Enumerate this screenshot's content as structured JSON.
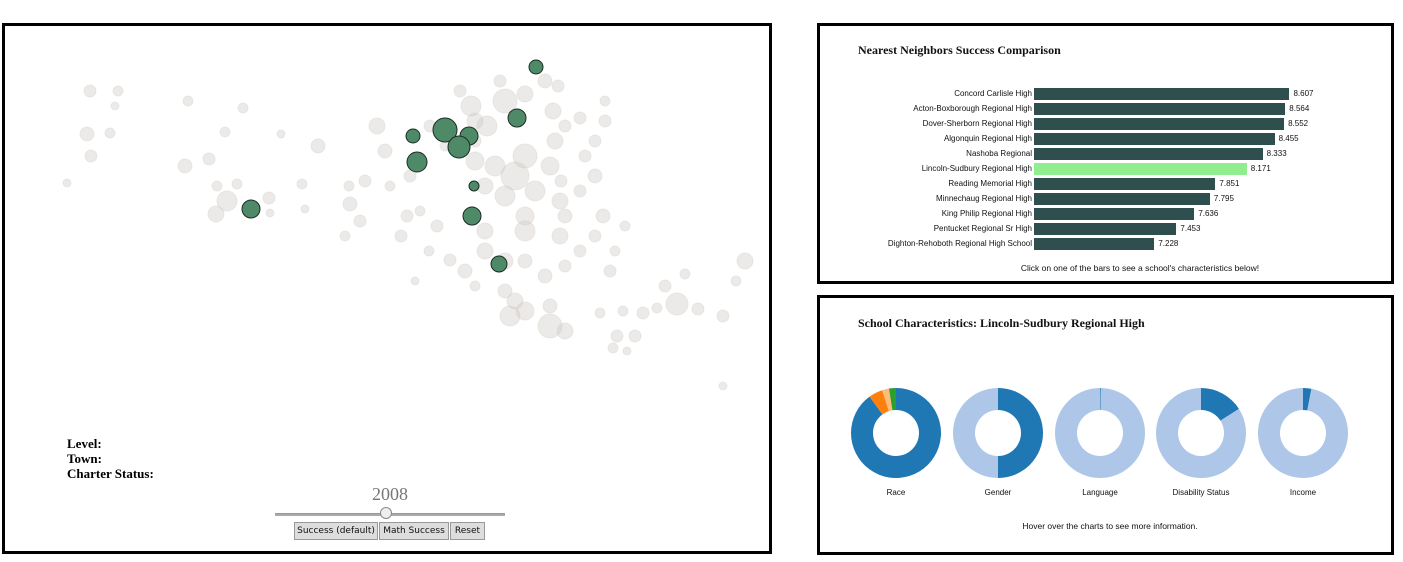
{
  "map": {
    "info": {
      "level_label": "Level:",
      "town_label": "Town:",
      "charter_label": "Charter Status:"
    },
    "year": "2008",
    "slider": {
      "value_fraction": 0.48
    },
    "buttons": [
      "Success (default)",
      "Math Success",
      "Reset"
    ]
  },
  "nearest_neighbors": {
    "title": "Nearest Neighbors Success Comparison",
    "note": "Click on one of the bars to see a school's characteristics below!",
    "selected": "Lincoln-Sudbury Regional High",
    "bar_color": "#2f4f4f",
    "selected_color": "#90ee90",
    "schools": [
      {
        "name": "Concord Carlisle High",
        "value": "8.607"
      },
      {
        "name": "Acton-Boxborough Regional High",
        "value": "8.564"
      },
      {
        "name": "Dover-Sherborn Regional High",
        "value": "8.552"
      },
      {
        "name": "Algonquin Regional High",
        "value": "8.455"
      },
      {
        "name": "Nashoba Regional",
        "value": "8.333"
      },
      {
        "name": "Lincoln-Sudbury Regional High",
        "value": "8.171"
      },
      {
        "name": "Reading Memorial High",
        "value": "7.851"
      },
      {
        "name": "Minnechaug Regional High",
        "value": "7.795"
      },
      {
        "name": "King Philip Regional High",
        "value": "7.636"
      },
      {
        "name": "Pentucket Regional Sr High",
        "value": "7.453"
      },
      {
        "name": "Dighton-Rehoboth Regional High School",
        "value": "7.228"
      }
    ]
  },
  "school_characteristics": {
    "title": "School Characteristics: Lincoln-Sudbury Regional High",
    "note": "Hover over the charts to see more information.",
    "colors": {
      "primary": "#1f77b4",
      "secondary": "#aec7e8",
      "orange": "#ff7f0e",
      "light_orange": "#ffbb78",
      "green": "#2ca02c"
    },
    "donuts": [
      {
        "label": "Race",
        "segments": [
          {
            "color": "#1f77b4",
            "value": 0.9
          },
          {
            "color": "#ff7f0e",
            "value": 0.05
          },
          {
            "color": "#ffbb78",
            "value": 0.025
          },
          {
            "color": "#2ca02c",
            "value": 0.025
          }
        ]
      },
      {
        "label": "Gender",
        "segments": [
          {
            "color": "#1f77b4",
            "value": 0.5
          },
          {
            "color": "#aec7e8",
            "value": 0.5
          }
        ]
      },
      {
        "label": "Language",
        "segments": [
          {
            "color": "#1f77b4",
            "value": 0.003
          },
          {
            "color": "#aec7e8",
            "value": 0.997
          }
        ]
      },
      {
        "label": "Disability Status",
        "segments": [
          {
            "color": "#1f77b4",
            "value": 0.16
          },
          {
            "color": "#aec7e8",
            "value": 0.84
          }
        ]
      },
      {
        "label": "Income",
        "segments": [
          {
            "color": "#1f77b4",
            "value": 0.03
          },
          {
            "color": "#aec7e8",
            "value": 0.97
          }
        ]
      }
    ]
  }
}
